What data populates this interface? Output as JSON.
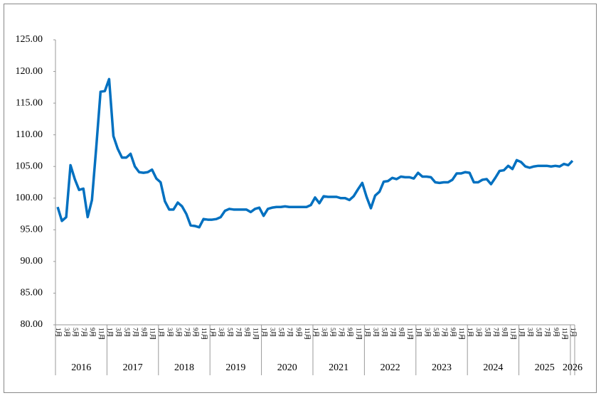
{
  "chart_data": {
    "type": "line",
    "categories": [
      "1月",
      null,
      "3月",
      null,
      "5月",
      null,
      "7月",
      null,
      "9月",
      null,
      "11月",
      null,
      "1月",
      null,
      "3月",
      null,
      "5月",
      null,
      "7月",
      null,
      "9月",
      null,
      "11月",
      null,
      "1月",
      null,
      "3月",
      null,
      "5月",
      null,
      "7月",
      null,
      "9月",
      null,
      "11月",
      null,
      "1月",
      null,
      "3月",
      null,
      "5月",
      null,
      "7月",
      null,
      "9月",
      null,
      "11月",
      null,
      "1月",
      null,
      "3月",
      null,
      "5月",
      null,
      "7月",
      null,
      "9月",
      null,
      "11月",
      null,
      "1月",
      null,
      "3月",
      null,
      "5月",
      null,
      "7月",
      null,
      "9月",
      null,
      "11月",
      null,
      "1月",
      null,
      "3月",
      null,
      "5月",
      null,
      "7月",
      null,
      "9月",
      null,
      "11月",
      null,
      "1月",
      null,
      "3月",
      null,
      "5月",
      null,
      "7月",
      null,
      "9月",
      null,
      "11月",
      null,
      "1月",
      null,
      "3月",
      null,
      "5月",
      null,
      "7月",
      null,
      "9月",
      null,
      "11月",
      null,
      "1月",
      null,
      "3月",
      null,
      "5月",
      null,
      "7月",
      null,
      "9月",
      null,
      "11月",
      null,
      "1月"
    ],
    "years": [
      "2016",
      "2017",
      "2018",
      "2019",
      "2020",
      "2021",
      "2022",
      "2023",
      "2024",
      "2025",
      "2026"
    ],
    "series": [
      {
        "color": "#0070c0",
        "values": [
          98.6,
          96.4,
          97.0,
          105.2,
          103.0,
          101.3,
          101.5,
          97.0,
          99.7,
          108.0,
          116.8,
          116.9,
          118.8,
          109.8,
          107.8,
          106.4,
          106.4,
          107.0,
          105.0,
          104.1,
          104.0,
          104.1,
          104.5,
          103.1,
          102.5,
          99.5,
          98.2,
          98.2,
          99.3,
          98.7,
          97.5,
          95.7,
          95.6,
          95.4,
          96.7,
          96.6,
          96.6,
          96.7,
          97.0,
          98.0,
          98.3,
          98.2,
          98.2,
          98.2,
          98.2,
          97.8,
          98.3,
          98.5,
          97.2,
          98.3,
          98.5,
          98.6,
          98.6,
          98.7,
          98.6,
          98.6,
          98.6,
          98.6,
          98.6,
          98.9,
          100.1,
          99.2,
          100.3,
          100.2,
          100.2,
          100.2,
          100.0,
          100.0,
          99.7,
          100.3,
          101.4,
          102.4,
          100.2,
          98.4,
          100.4,
          101.0,
          102.6,
          102.7,
          103.2,
          103.0,
          103.4,
          103.3,
          103.3,
          103.1,
          104.0,
          103.4,
          103.4,
          103.3,
          102.5,
          102.4,
          102.5,
          102.5,
          102.9,
          103.9,
          103.9,
          104.1,
          104.0,
          102.5,
          102.5,
          102.9,
          103.0,
          102.2,
          103.2,
          104.3,
          104.4,
          105.1,
          104.6,
          106.0,
          105.7,
          105.0,
          104.8,
          105.0,
          105.1,
          105.1,
          105.1,
          105.0,
          105.1,
          105.0,
          105.4,
          105.2,
          105.9
        ]
      }
    ],
    "ylim": [
      80,
      125
    ],
    "yticks": [
      {
        "value": 80,
        "label": "80.00"
      },
      {
        "value": 85,
        "label": "85.00"
      },
      {
        "value": 90,
        "label": "90.00"
      },
      {
        "value": 95,
        "label": "95.00"
      },
      {
        "value": 100,
        "label": "100.00"
      },
      {
        "value": 105,
        "label": "105.00"
      },
      {
        "value": 110,
        "label": "110.00"
      },
      {
        "value": 115,
        "label": "115.00"
      },
      {
        "value": 120,
        "label": "120.00"
      },
      {
        "value": 125,
        "label": "125.00"
      }
    ]
  }
}
